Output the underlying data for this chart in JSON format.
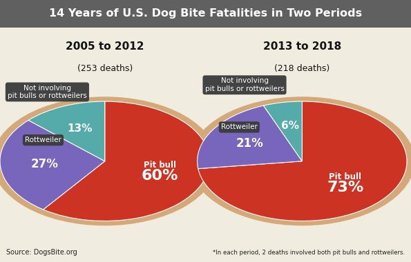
{
  "title": "14 Years of U.S. Dog Bite Fatalities in Two Periods",
  "title_bg_color": "#606060",
  "title_text_color": "#ffffff",
  "background_color": "#f0ece0",
  "pie_edge_color": "#d4a97a",
  "pie1": {
    "label": "2005 to 2012",
    "subtitle": "(253 deaths)",
    "values": [
      60,
      27,
      13
    ],
    "colors": [
      "#cc3322",
      "#7766bb",
      "#55aaaa"
    ],
    "pct_labels": [
      "60%",
      "27%",
      "13%"
    ],
    "slice_labels": [
      "Pit bull",
      "Not involving\npit bulls or rottweilers",
      "Rottweiler"
    ]
  },
  "pie2": {
    "label": "2013 to 2018",
    "subtitle": "(218 deaths)",
    "values": [
      73,
      21,
      6
    ],
    "colors": [
      "#cc3322",
      "#7766bb",
      "#55aaaa"
    ],
    "pct_labels": [
      "73%",
      "21%",
      "6%"
    ],
    "slice_labels": [
      "Pit bull",
      "Not involving\npit bulls or rottweilers",
      "Rottweiler"
    ]
  },
  "source_text": "Source: DogsBite.org",
  "footnote_text": "*In each period, 2 deaths involved both pit bulls and rottweilers.",
  "label_bg_color": "#3a3a3a",
  "label_text_color": "#ffffff",
  "pit_bull_label_color": "#ffffff"
}
